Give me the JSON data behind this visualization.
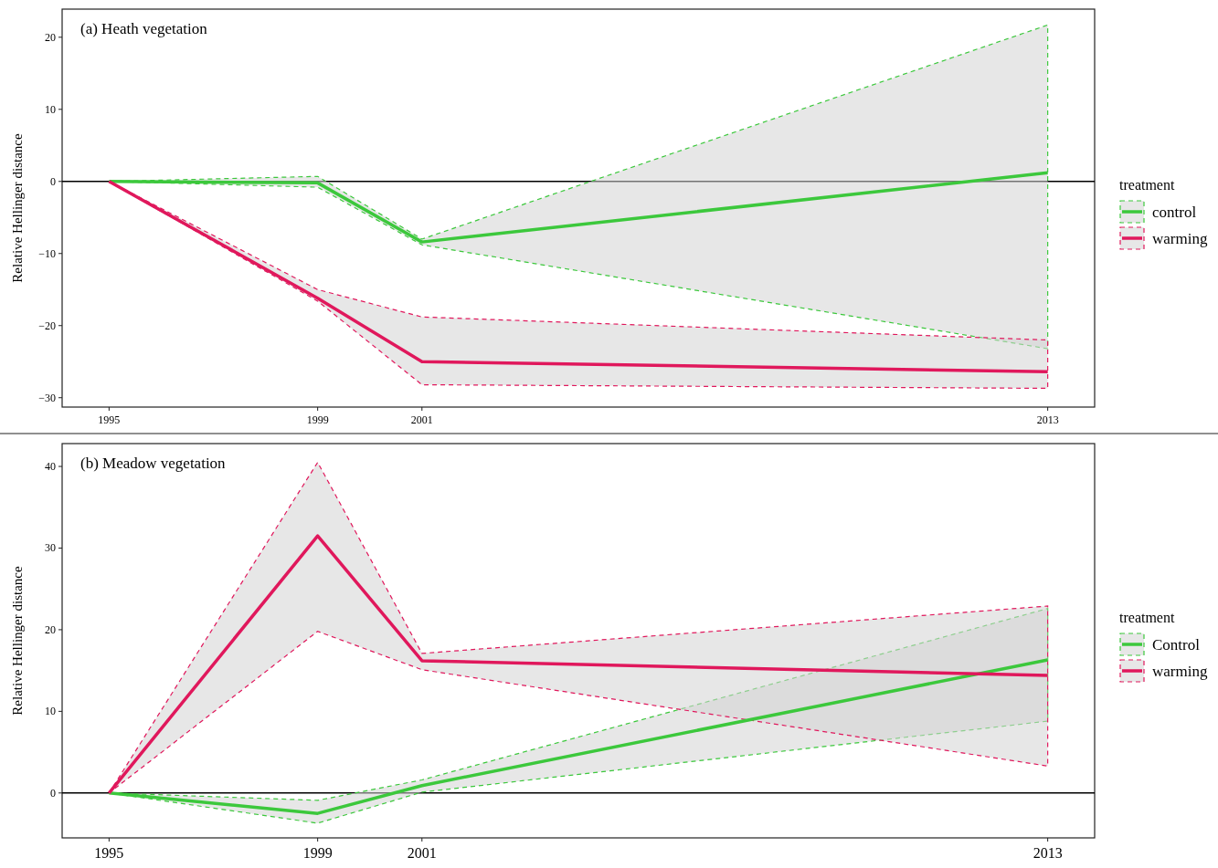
{
  "chart_data": [
    {
      "type": "line",
      "title": "(a) Heath vegetation",
      "ylabel": "Relative Hellinger distance",
      "legend_title": "treatment",
      "legend": "right",
      "x": [
        1995,
        1999,
        2001,
        2013
      ],
      "xlim": [
        1994.1,
        2013.9
      ],
      "xticks": [
        1995,
        1999,
        2001,
        2013
      ],
      "ylim": [
        -31.3,
        23.9
      ],
      "yticks": [
        -30,
        -20,
        -10,
        0,
        10,
        20
      ],
      "ref_lines": [
        {
          "axis": "y",
          "value": 0,
          "color": "#000000"
        }
      ],
      "series": [
        {
          "name": "control",
          "color": "#3cc83c",
          "values": [
            0,
            -0.2,
            -8.4,
            1.2
          ],
          "lower": [
            0,
            -0.8,
            -8.8,
            -23.2
          ],
          "upper": [
            0,
            0.7,
            -8.0,
            21.7
          ]
        },
        {
          "name": "warming",
          "color": "#e0185c",
          "values": [
            0,
            -16.2,
            -25.0,
            -26.4
          ],
          "lower": [
            0,
            -16.6,
            -28.2,
            -28.7
          ],
          "upper": [
            0,
            -15.0,
            -18.8,
            -22.0
          ]
        }
      ]
    },
    {
      "type": "line",
      "title": "(b) Meadow vegetation",
      "ylabel": "Relative Hellinger distance",
      "legend_title": "treatment",
      "legend": "right",
      "x": [
        1995,
        1999,
        2001,
        2013
      ],
      "xlim": [
        1994.1,
        2013.9
      ],
      "xticks": [
        1995,
        1999,
        2001,
        2013
      ],
      "ylim": [
        -5.5,
        42.8
      ],
      "yticks": [
        0,
        10,
        20,
        30,
        40
      ],
      "ref_lines": [
        {
          "axis": "y",
          "value": 0,
          "color": "#000000"
        }
      ],
      "series": [
        {
          "name": "Control",
          "color": "#3cc83c",
          "values": [
            0,
            -2.5,
            0.9,
            16.3
          ],
          "lower": [
            0,
            -3.7,
            0.1,
            8.8
          ],
          "upper": [
            0,
            -0.9,
            1.6,
            22.6
          ]
        },
        {
          "name": "warming",
          "color": "#e0185c",
          "values": [
            0,
            31.5,
            16.2,
            14.4
          ],
          "lower": [
            0,
            19.8,
            15.1,
            3.3
          ],
          "upper": [
            0,
            40.5,
            17.1,
            22.9
          ]
        }
      ]
    }
  ]
}
